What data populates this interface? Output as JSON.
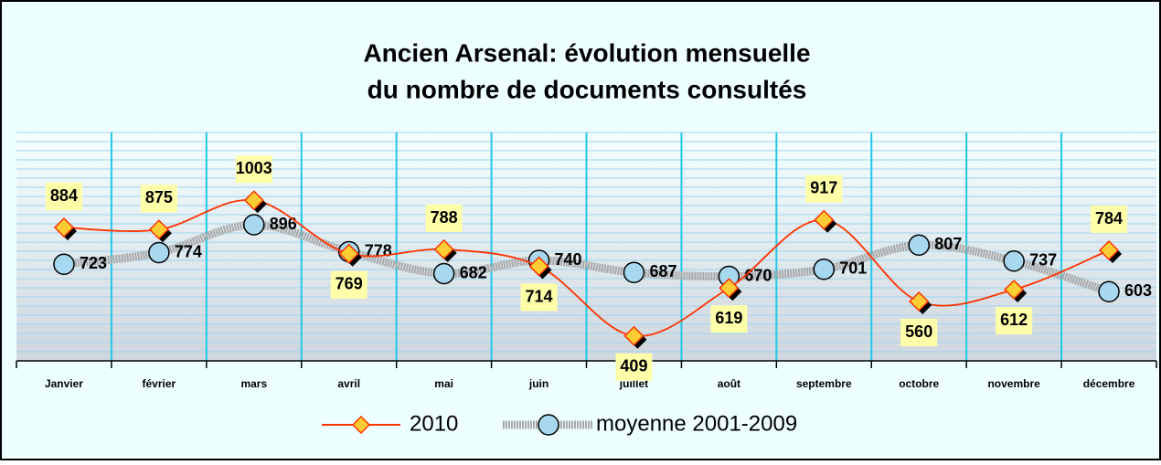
{
  "chart_data": {
    "type": "line",
    "title": [
      "Ancien Arsenal: évolution mensuelle",
      "du nombre de documents consultés"
    ],
    "categories": [
      "Janvier",
      "février",
      "mars",
      "avril",
      "mai",
      "juin",
      "juillet",
      "août",
      "septembre",
      "octobre",
      "novembre",
      "décembre"
    ],
    "series": [
      {
        "name": "2010",
        "color": "#ff3300",
        "values": [
          884,
          875,
          1003,
          769,
          788,
          714,
          409,
          619,
          917,
          560,
          612,
          784
        ]
      },
      {
        "name": "moyenne 2001-2009",
        "color": "#a9a9a9",
        "values": [
          723,
          774,
          896,
          778,
          682,
          740,
          687,
          670,
          701,
          807,
          737,
          603
        ]
      }
    ],
    "ylim": [
      300,
      1300
    ],
    "yticks": [
      300,
      340,
      380,
      420,
      460,
      500,
      540,
      580,
      620,
      660,
      700,
      740,
      780,
      820,
      860,
      900,
      940,
      980,
      1020,
      1060,
      1100,
      1140,
      1180,
      1220,
      1260,
      1300
    ],
    "grid": true,
    "legend": "bottom"
  }
}
